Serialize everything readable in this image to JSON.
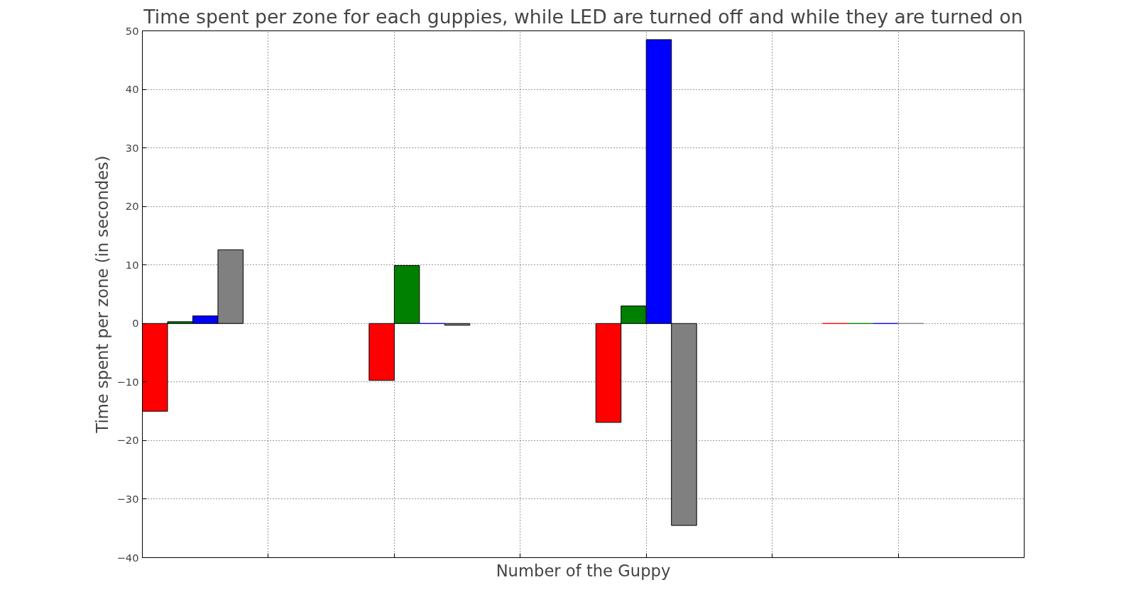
{
  "chart_data": {
    "type": "bar",
    "title": "Time spent per zone for each guppies, while LED are turned off and while they are turned on",
    "xlabel": "Number of the Guppy",
    "ylabel": "Time spent per zone (in secondes)",
    "categories": [
      null,
      null,
      null,
      null
    ],
    "series": [
      {
        "color": "#ff0000",
        "values": [
          -15.0,
          -9.7,
          -16.9,
          0
        ]
      },
      {
        "color": "#008000",
        "values": [
          0.3,
          9.9,
          3.0,
          0
        ]
      },
      {
        "color": "#0000ff",
        "values": [
          1.3,
          0,
          48.5,
          0
        ]
      },
      {
        "color": "#808080",
        "values": [
          12.6,
          -0.3,
          -34.5,
          0
        ]
      }
    ],
    "ylim": [
      -40,
      50
    ],
    "yticks": [
      {
        "value": -40,
        "label": "−40"
      },
      {
        "value": -30,
        "label": "−30"
      },
      {
        "value": -20,
        "label": "−20"
      },
      {
        "value": -10,
        "label": "−10"
      },
      0,
      10,
      20,
      30,
      40,
      50
    ],
    "grid": true,
    "tick_labels": "y"
  }
}
